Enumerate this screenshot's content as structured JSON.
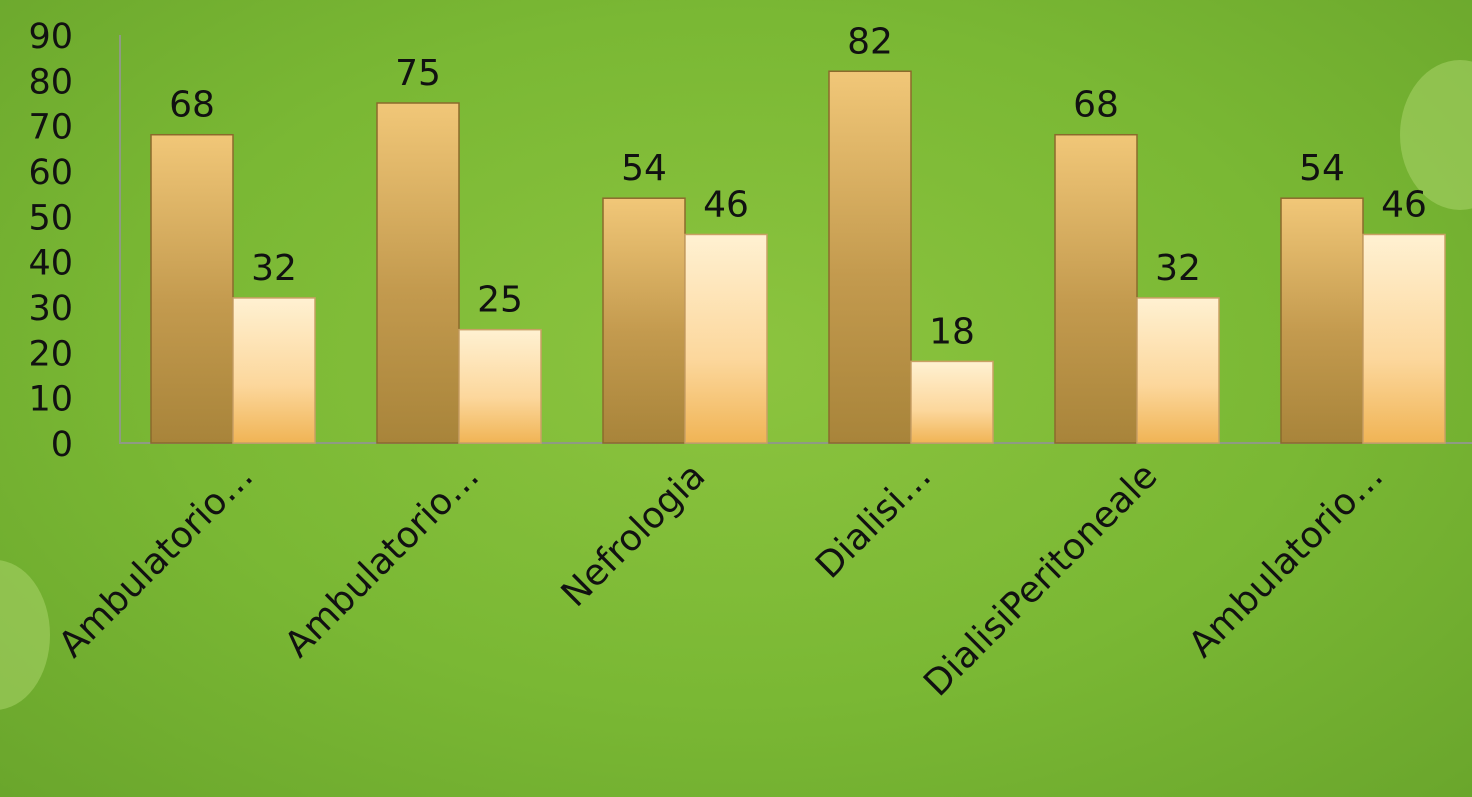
{
  "chart_data": {
    "type": "bar",
    "categories": [
      "Ambulatorio…",
      "Ambulatorio…",
      "Nefrologia",
      "Dialisi…",
      "DialisiPeritoneale",
      "Ambulatorio…"
    ],
    "series": [
      {
        "values": [
          68,
          75,
          54,
          82,
          68,
          54
        ],
        "color": "#d8a74f"
      },
      {
        "values": [
          32,
          25,
          46,
          18,
          32,
          46
        ],
        "color": "#fde3b4"
      }
    ],
    "yticks": [
      "0",
      "10",
      "20",
      "30",
      "40",
      "50",
      "60",
      "70",
      "80",
      "90"
    ],
    "ylim": [
      0,
      90
    ],
    "grid": false,
    "legend": "none"
  },
  "colors": {
    "background": "#7ab834",
    "axis": "#8f9a84",
    "text": "#111111"
  }
}
